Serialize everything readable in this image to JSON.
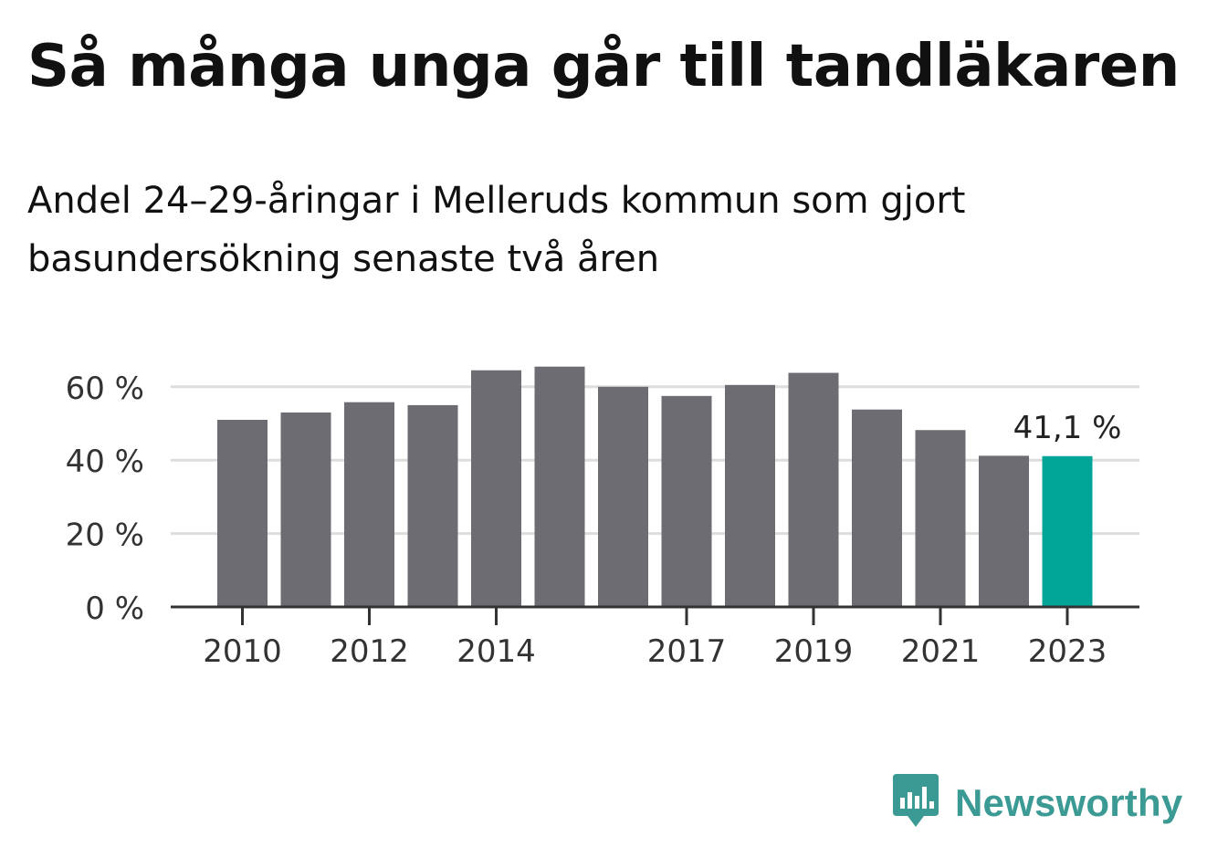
{
  "header": {
    "title": "Så många unga går till tandläkaren",
    "subtitle": "Andel 24–29-åringar i Melleruds kommun som gjort basundersökning senaste två åren"
  },
  "chart_data": {
    "type": "bar",
    "categories": [
      "2010",
      "2011",
      "2012",
      "2013",
      "2014",
      "2015",
      "2016",
      "2017",
      "2018",
      "2019",
      "2020",
      "2021",
      "2022",
      "2023"
    ],
    "values": [
      51.0,
      53.0,
      55.8,
      55.0,
      64.5,
      65.5,
      60.0,
      57.5,
      60.5,
      63.8,
      53.8,
      48.2,
      41.2,
      41.1
    ],
    "x_tick_labels": [
      "2010",
      "2012",
      "2014",
      "2017",
      "2019",
      "2021",
      "2023"
    ],
    "y_ticks": [
      0,
      20,
      40,
      60
    ],
    "y_tick_labels": [
      "0 %",
      "20 %",
      "40 %",
      "60 %"
    ],
    "ylim": [
      0,
      66
    ],
    "highlight_index": 13,
    "highlight_label": "41,1 %",
    "colors": {
      "bar": "#6d6c73",
      "highlight": "#00a598",
      "grid": "#dddddd",
      "axis": "#333333"
    },
    "grid": true,
    "xlabel": "",
    "ylabel": ""
  },
  "branding": {
    "name": "Newsworthy",
    "icon": "newsworthy-chart-bubble-icon",
    "color": "#3b9a93"
  }
}
